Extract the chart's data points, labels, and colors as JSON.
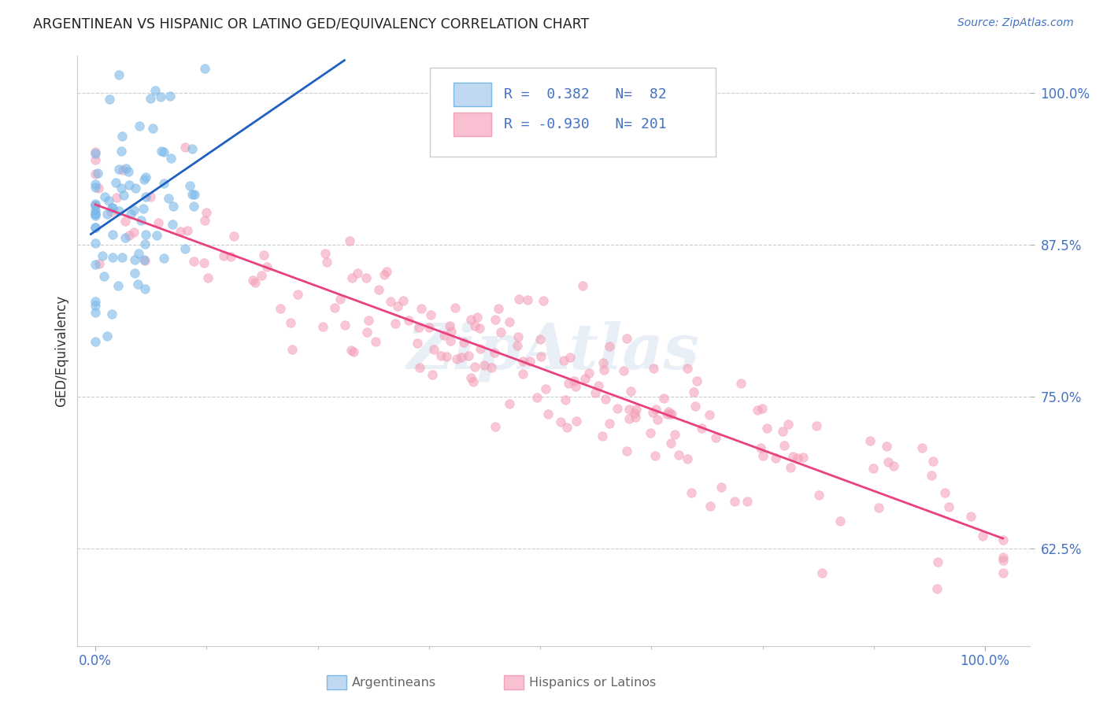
{
  "title": "ARGENTINEAN VS HISPANIC OR LATINO GED/EQUIVALENCY CORRELATION CHART",
  "source": "Source: ZipAtlas.com",
  "ylabel": "GED/Equivalency",
  "legend_blue_R": "0.382",
  "legend_blue_N": "82",
  "legend_pink_R": "-0.930",
  "legend_pink_N": "201",
  "legend_blue_label": "Argentineans",
  "legend_pink_label": "Hispanics or Latinos",
  "blue_scatter_color": "#7ab8e8",
  "pink_scatter_color": "#f4a0b8",
  "blue_line_color": "#2060c0",
  "pink_line_color": "#e84080",
  "blue_legend_face": "#c0d8f0",
  "pink_legend_face": "#f8c0d0",
  "watermark": "ZipAtlas",
  "title_color": "#222222",
  "source_color": "#4472c4",
  "axis_tick_color": "#4472c4",
  "legend_text_color": "#4472c4",
  "ylabel_color": "#333333",
  "bottom_legend_color": "#666666",
  "grid_color": "#cccccc",
  "n_blue": 82,
  "n_pink": 201,
  "R_blue": 0.382,
  "R_pink": -0.93,
  "seed_blue": 42,
  "seed_pink": 7
}
